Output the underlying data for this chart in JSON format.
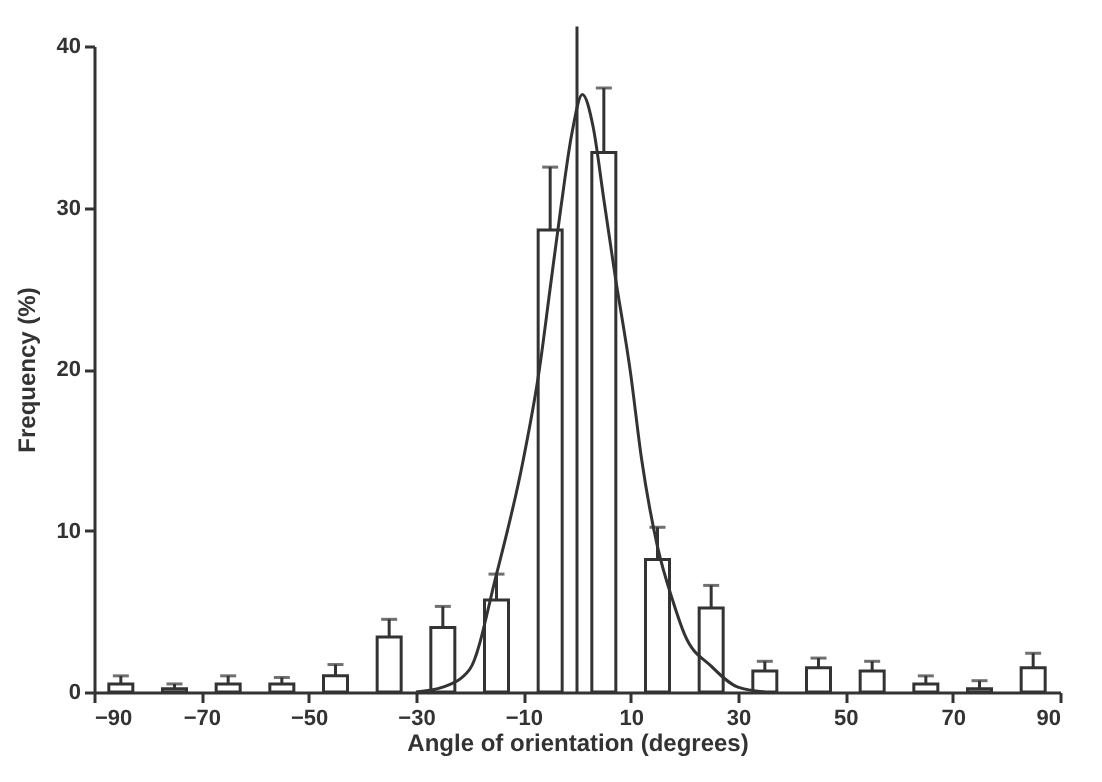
{
  "chart_data": {
    "type": "bar",
    "xlabel": "Angle of orientation (degrees)",
    "ylabel": "Frequency (%)",
    "x": [
      -85,
      -75,
      -65,
      -55,
      -45,
      -35,
      -25,
      -15,
      -5,
      5,
      15,
      25,
      35,
      45,
      55,
      65,
      75,
      85
    ],
    "series": [
      {
        "color": "#ffffff",
        "values": [
          0.5,
          0.2,
          0.5,
          0.5,
          1.0,
          3.4,
          4.0,
          5.7,
          28.6,
          33.4,
          8.2,
          5.2,
          1.3,
          1.5,
          1.3,
          0.5,
          0.2,
          1.5
        ],
        "errors": [
          [
            0.5,
            1.0
          ],
          [
            0.2,
            0.5
          ],
          [
            0.5,
            1.0
          ],
          [
            0.5,
            0.9
          ],
          [
            1.0,
            1.7
          ],
          [
            3.4,
            4.5
          ],
          [
            4.0,
            5.3
          ],
          [
            5.7,
            7.3
          ],
          [
            28.6,
            32.5
          ],
          [
            33.4,
            37.4
          ],
          [
            8.2,
            10.2
          ],
          [
            5.2,
            6.6
          ],
          [
            1.3,
            1.9
          ],
          [
            1.5,
            2.1
          ],
          [
            1.3,
            1.9
          ],
          [
            0.5,
            1.0
          ],
          [
            0.2,
            0.7
          ],
          [
            1.5,
            2.4
          ]
        ]
      },
      {
        "type": "line",
        "color": "#333333",
        "x": [
          -30,
          -25,
          -20,
          -15,
          -10,
          -7,
          -5,
          -3,
          -1,
          1,
          3,
          5,
          7,
          10,
          12,
          15,
          18,
          20,
          25,
          30,
          35
        ],
        "values": [
          0,
          0.3,
          1.4,
          7.3,
          14.4,
          20,
          25,
          30,
          34.5,
          37,
          35,
          30.5,
          26,
          19.7,
          14.5,
          9,
          5.5,
          3.6,
          1.6,
          0.3,
          0
        ]
      }
    ],
    "ref_lines": [
      {
        "axis": "x",
        "value": 0,
        "color": "#333333"
      }
    ],
    "xlim": [
      -90,
      90
    ],
    "xticks": [
      -90,
      -70,
      -50,
      -30,
      -10,
      10,
      30,
      50,
      70,
      90
    ],
    "ylim": [
      0,
      40
    ],
    "yticks": [
      0,
      10,
      20,
      30,
      40
    ],
    "grid": false
  }
}
